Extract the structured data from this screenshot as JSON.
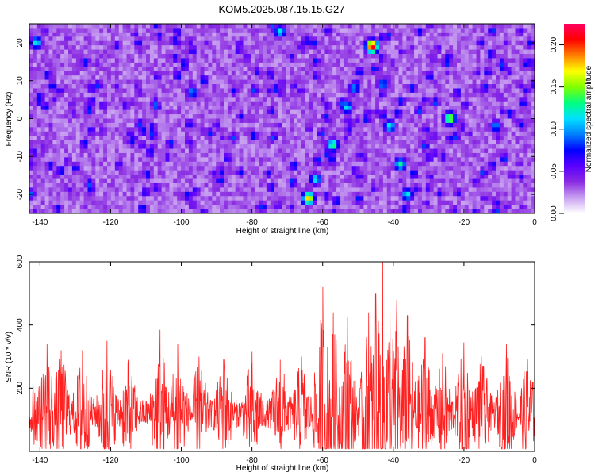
{
  "title": "KOM5.2025.087.15.15.G27",
  "chart_data": [
    {
      "type": "heatmap",
      "xlabel": "Height of straight line (km)",
      "ylabel": "Frequency (Hz)",
      "xlim": [
        -143,
        0
      ],
      "ylim": [
        -25,
        25
      ],
      "x_ticks": [
        -140,
        -120,
        -100,
        -80,
        -60,
        -40,
        -20,
        0
      ],
      "y_ticks": [
        -20,
        -10,
        0,
        10,
        20
      ],
      "colorbar": {
        "label": "Normalized spectral amplitude",
        "range": [
          0,
          0.225
        ],
        "ticks": [
          0.0,
          0.05,
          0.1,
          0.15,
          0.2
        ],
        "tick_labels": [
          "0.00",
          "0.05",
          "0.10",
          "0.15",
          "0.20"
        ],
        "colors": [
          "#ffffff",
          "#c8a0f0",
          "#8a2be2",
          "#5a00ff",
          "#0000ff",
          "#0080ff",
          "#00e0ff",
          "#00ff80",
          "#80ff00",
          "#ffff00",
          "#ff8000",
          "#ff0000",
          "#ff0060"
        ]
      },
      "features": [
        {
          "x": -72,
          "y": 23,
          "amplitude": 0.12
        },
        {
          "x": -64,
          "y": -21,
          "amplitude": 0.18
        },
        {
          "x": -62,
          "y": -16,
          "amplitude": 0.12
        },
        {
          "x": -57,
          "y": -7,
          "amplitude": 0.14
        },
        {
          "x": -53,
          "y": 3,
          "amplitude": 0.12
        },
        {
          "x": -51,
          "y": 8,
          "amplitude": 0.1
        },
        {
          "x": -46,
          "y": 19,
          "amplitude": 0.22
        },
        {
          "x": -43,
          "y": 9,
          "amplitude": 0.1
        },
        {
          "x": -41,
          "y": -2,
          "amplitude": 0.12
        },
        {
          "x": -38,
          "y": -12,
          "amplitude": 0.13
        },
        {
          "x": -36,
          "y": -20,
          "amplitude": 0.12
        },
        {
          "x": -24,
          "y": 0,
          "amplitude": 0.16
        },
        {
          "x": -11,
          "y": -2,
          "amplitude": 0.1
        },
        {
          "x": -141,
          "y": 20,
          "amplitude": 0.12
        },
        {
          "x": -97,
          "y": 7,
          "amplitude": 0.1
        }
      ]
    },
    {
      "type": "line",
      "xlabel": "Height of straight line (km)",
      "ylabel": "SNR (10 * v/v)",
      "xlim": [
        -143,
        0
      ],
      "ylim": [
        0,
        600
      ],
      "x_ticks": [
        -140,
        -120,
        -100,
        -80,
        -60,
        -40,
        -20,
        0
      ],
      "y_ticks": [
        200,
        400,
        600
      ],
      "color": "#ff2020",
      "baseline": 120,
      "peaks": [
        {
          "x": -142,
          "y": 230
        },
        {
          "x": -138,
          "y": 340
        },
        {
          "x": -134,
          "y": 320
        },
        {
          "x": -128,
          "y": 320
        },
        {
          "x": -121,
          "y": 350
        },
        {
          "x": -115,
          "y": 290
        },
        {
          "x": -106,
          "y": 385
        },
        {
          "x": -101,
          "y": 340
        },
        {
          "x": -95,
          "y": 300
        },
        {
          "x": -88,
          "y": 290
        },
        {
          "x": -80,
          "y": 315
        },
        {
          "x": -72,
          "y": 290
        },
        {
          "x": -66,
          "y": 300
        },
        {
          "x": -60,
          "y": 520
        },
        {
          "x": -57,
          "y": 440
        },
        {
          "x": -53,
          "y": 425
        },
        {
          "x": -47,
          "y": 440
        },
        {
          "x": -45,
          "y": 500
        },
        {
          "x": -43,
          "y": 600
        },
        {
          "x": -41,
          "y": 490
        },
        {
          "x": -39,
          "y": 480
        },
        {
          "x": -36,
          "y": 430
        },
        {
          "x": -31,
          "y": 360
        },
        {
          "x": -26,
          "y": 310
        },
        {
          "x": -20,
          "y": 345
        },
        {
          "x": -15,
          "y": 300
        },
        {
          "x": -8,
          "y": 340
        },
        {
          "x": -2,
          "y": 290
        }
      ]
    }
  ]
}
